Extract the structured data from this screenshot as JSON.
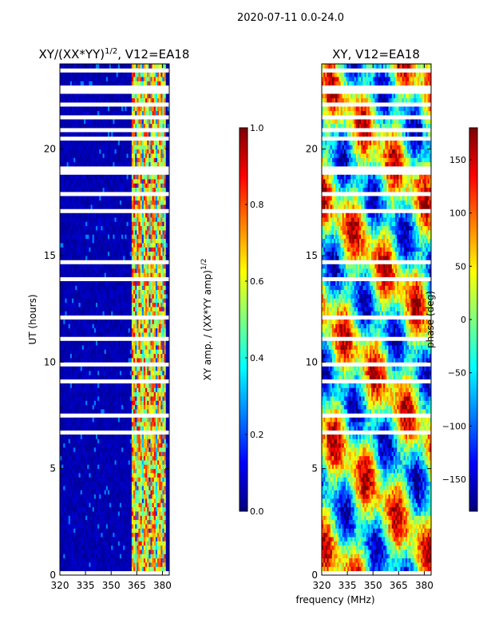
{
  "suptitle": "2020-07-11 0.0-24.0",
  "shared_xlabel": "frequency (MHz)",
  "colors": {
    "jet": [
      "#00007f",
      "#0000ff",
      "#007fff",
      "#00ffff",
      "#7fff7f",
      "#ffff00",
      "#ff7f00",
      "#ff0000",
      "#7f0000"
    ],
    "gap": "#ffffff",
    "frame": "#000000"
  },
  "chart_data": [
    {
      "type": "heatmap",
      "title": "XY/(XX*YY)^(1/2), V12=EA18",
      "title_base": "XY/(XX*YY)",
      "title_sup": "1/2",
      "title_tail": ", V12=EA18",
      "xlabel": "",
      "ylabel": "UT (hours)",
      "xlim": [
        320,
        384
      ],
      "ylim": [
        0,
        24
      ],
      "xticks": [
        320,
        335,
        350,
        365,
        380
      ],
      "yticks": [
        0,
        5,
        10,
        15,
        20
      ],
      "colorbar": {
        "label_base": "XY amp. / (XX*YY amp)",
        "label_sup": "1/2",
        "range": [
          0.0,
          1.0
        ],
        "ticks": [
          0.0,
          0.2,
          0.4,
          0.6,
          0.8,
          1.0
        ],
        "tick_labels": [
          "0.0",
          "0.2",
          "0.4",
          "0.6",
          "0.8",
          "1.0"
        ]
      }
    },
    {
      "type": "heatmap",
      "title": "XY, V12=EA18",
      "xlabel": "frequency (MHz)",
      "ylabel": "",
      "xlim": [
        320,
        384
      ],
      "ylim": [
        0,
        24
      ],
      "xticks": [
        320,
        335,
        350,
        365,
        380
      ],
      "yticks": [
        0,
        5,
        10,
        15,
        20
      ],
      "colorbar": {
        "label": "phase (deg)",
        "range": [
          -180,
          180
        ],
        "ticks": [
          -150,
          -100,
          -50,
          0,
          50,
          100,
          150
        ],
        "tick_labels": [
          "−150",
          "−100",
          "−50",
          "0",
          "50",
          "100",
          "150"
        ]
      }
    }
  ]
}
